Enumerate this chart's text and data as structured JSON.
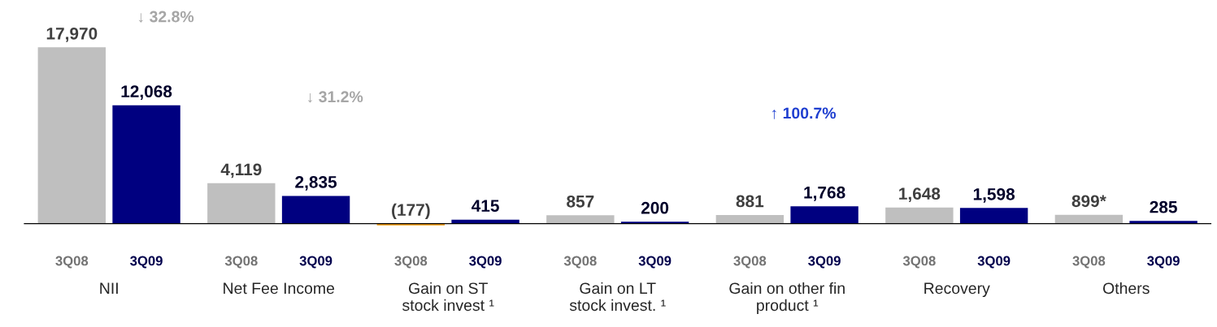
{
  "chart_data": {
    "type": "bar",
    "categories": [
      "NII",
      "Net Fee Income",
      "Gain on ST\nstock invest ¹",
      "Gain on LT\nstock invest. ¹",
      "Gain on other fin\nproduct ¹",
      "Recovery",
      "Others"
    ],
    "series": [
      {
        "name": "3Q08",
        "color": "#bfbfbf",
        "colors": [
          "#bfbfbf",
          "#bfbfbf",
          "#f59a00",
          "#bfbfbf",
          "#bfbfbf",
          "#bfbfbf",
          "#bfbfbf"
        ],
        "values": [
          17970,
          4119,
          -177,
          857,
          881,
          1648,
          899
        ],
        "value_labels": [
          "17,970",
          "4,119",
          "(177)",
          "857",
          "881",
          "1,648",
          "899*"
        ]
      },
      {
        "name": "3Q09",
        "color": "#000080",
        "values": [
          12068,
          2835,
          415,
          200,
          1768,
          1598,
          285
        ],
        "value_labels": [
          "12,068",
          "2,835",
          "415",
          "200",
          "1,768",
          "1,598",
          "285"
        ]
      }
    ],
    "annotations": [
      "↓ 32.8%",
      "↓ 31.2%",
      "↑ 100.7%"
    ],
    "grid": false,
    "legend": false
  }
}
